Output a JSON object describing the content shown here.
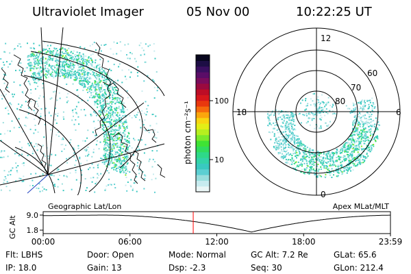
{
  "header": {
    "title": "Ultraviolet Imager",
    "date": "05 Nov 00",
    "time": "10:22:25 UT"
  },
  "colorbar": {
    "unit_label": "photon cm⁻²s⁻¹",
    "tick_labels": [
      "100",
      "10"
    ],
    "colors": [
      "#eaf6f6",
      "#c7ebef",
      "#99dedd",
      "#5ccfd2",
      "#39c9c0",
      "#33d3a8",
      "#2ed989",
      "#31dd5d",
      "#3fe334",
      "#7aea2b",
      "#b6ef1f",
      "#e3ee16",
      "#f8d611",
      "#fba60c",
      "#f66a0c",
      "#e9380e",
      "#d7171b",
      "#bd0d26",
      "#9b0a3f",
      "#7a0c5c",
      "#5a0d67",
      "#3a0f60",
      "#1d0e45",
      "#07061d"
    ]
  },
  "left_map": {
    "label": "Geographic Lat/Lon"
  },
  "right_map": {
    "label": "Apex MLat/MLT",
    "mlt_labels": {
      "top": "12",
      "bottom": "0",
      "left": "18",
      "right": "6"
    },
    "lat_labels": [
      "60",
      "70",
      "80"
    ]
  },
  "altitude_panel": {
    "ylabel": "GC Alt",
    "y_ticks": [
      "9.0",
      "1.8"
    ],
    "x_ticks": [
      "00:00",
      "06:00",
      "12:00",
      "18:00",
      "23:59"
    ],
    "current_time_marker_hours": 10.37
  },
  "status": {
    "row1": {
      "flt": "Flt: LBHS",
      "door": "Door: Open",
      "mode": "Mode: Normal",
      "gcalt": "GC Alt: 7.2 Re",
      "glat": "GLat:  65.6"
    },
    "row2": {
      "ip": "IP: 18.0",
      "gain": "Gain: 13",
      "dsp": "Dsp:    -2.3",
      "seq": "Seq: 30",
      "glon": "GLon: 212.4"
    }
  }
}
